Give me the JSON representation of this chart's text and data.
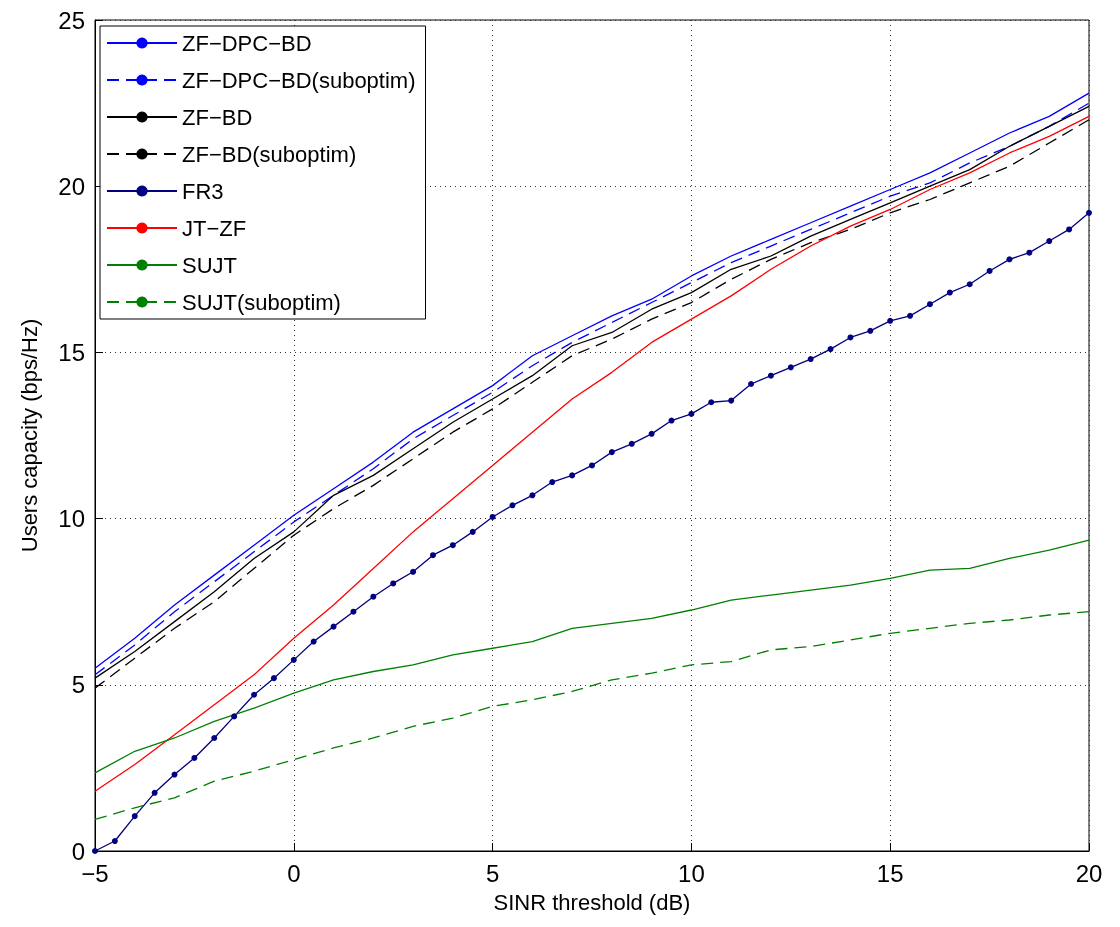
{
  "chart_data": {
    "type": "line",
    "xlabel": "SINR threshold (dB)",
    "ylabel": "Users capacity (bps/Hz)",
    "x": [
      -5,
      -4,
      -3,
      -2,
      -1,
      0,
      1,
      2,
      3,
      4,
      5,
      6,
      7,
      8,
      9,
      10,
      11,
      12,
      13,
      14,
      15,
      16,
      17,
      18,
      19,
      20
    ],
    "xlim": [
      -5,
      20
    ],
    "xticks": [
      -5,
      0,
      5,
      10,
      15,
      20
    ],
    "ylim": [
      0,
      25
    ],
    "yticks": [
      0,
      5,
      10,
      15,
      20,
      25
    ],
    "grid": true,
    "legend": "top left",
    "series": [
      {
        "name": "ZF−DPC−BD",
        "color": "#0000ff",
        "line_style": "solid",
        "values": [
          5.5,
          6.4,
          7.4,
          8.3,
          9.2,
          10.1,
          10.9,
          11.7,
          12.6,
          13.3,
          14.0,
          14.9,
          15.5,
          16.1,
          16.6,
          17.3,
          17.9,
          18.4,
          18.9,
          19.4,
          19.9,
          20.4,
          21.0,
          21.6,
          22.1,
          22.8
        ]
      },
      {
        "name": "ZF−DPC−BD(suboptim)",
        "color": "#0000ff",
        "line_style": "dashed",
        "values": [
          5.3,
          6.2,
          7.2,
          8.1,
          9.0,
          9.9,
          10.7,
          11.5,
          12.4,
          13.1,
          13.8,
          14.6,
          15.3,
          15.9,
          16.5,
          17.1,
          17.7,
          18.2,
          18.7,
          19.2,
          19.7,
          20.1,
          20.7,
          21.2,
          21.8,
          22.5
        ]
      },
      {
        "name": "ZF−BD",
        "color": "#000000",
        "line_style": "solid",
        "values": [
          5.2,
          6.0,
          6.9,
          7.8,
          8.8,
          9.6,
          10.7,
          11.3,
          12.1,
          12.9,
          13.6,
          14.3,
          15.2,
          15.6,
          16.3,
          16.8,
          17.5,
          17.9,
          18.5,
          19.0,
          19.5,
          20.0,
          20.5,
          21.2,
          21.8,
          22.4
        ]
      },
      {
        "name": "ZF−BD(suboptim)",
        "color": "#000000",
        "line_style": "dashed",
        "values": [
          4.9,
          5.8,
          6.7,
          7.5,
          8.5,
          9.5,
          10.3,
          11.0,
          11.8,
          12.6,
          13.3,
          14.1,
          14.9,
          15.4,
          16.0,
          16.5,
          17.2,
          17.8,
          18.3,
          18.7,
          19.2,
          19.6,
          20.1,
          20.6,
          21.3,
          22.0
        ]
      },
      {
        "name": "FR3",
        "color": "#000080",
        "line_style": "solid",
        "marker": "circle",
        "x": [
          -5,
          -4.5,
          -4,
          -3.5,
          -3,
          -2.5,
          -2,
          -1.5,
          -1,
          -0.5,
          0,
          0.5,
          1,
          1.5,
          2,
          2.5,
          3,
          3.5,
          4,
          4.5,
          5,
          5.5,
          6,
          6.5,
          7,
          7.5,
          8,
          8.5,
          9,
          9.5,
          10,
          10.5,
          11,
          11.5,
          12,
          12.5,
          13,
          13.5,
          14,
          14.5,
          15,
          15.5,
          16,
          16.5,
          17,
          17.5,
          18,
          18.5,
          19,
          19.5,
          20
        ],
        "values": [
          0,
          0.3,
          1.05,
          1.75,
          2.3,
          2.8,
          3.4,
          4.05,
          4.7,
          5.2,
          5.75,
          6.3,
          6.75,
          7.2,
          7.65,
          8.05,
          8.4,
          8.9,
          9.2,
          9.6,
          10.05,
          10.4,
          10.7,
          11.1,
          11.3,
          11.6,
          12.0,
          12.25,
          12.55,
          12.95,
          13.15,
          13.5,
          13.55,
          14.05,
          14.3,
          14.55,
          14.8,
          15.1,
          15.45,
          15.65,
          15.95,
          16.1,
          16.45,
          16.8,
          17.05,
          17.45,
          17.8,
          18.0,
          18.35,
          18.7,
          19.2
        ]
      },
      {
        "name": "JT−ZF",
        "color": "#ff0000",
        "line_style": "solid",
        "values": [
          1.8,
          2.6,
          3.5,
          4.4,
          5.3,
          6.4,
          7.4,
          8.5,
          9.6,
          10.6,
          11.6,
          12.6,
          13.6,
          14.4,
          15.3,
          16.0,
          16.7,
          17.5,
          18.2,
          18.8,
          19.3,
          19.9,
          20.4,
          21.0,
          21.5,
          22.1
        ]
      },
      {
        "name": "SUJT",
        "color": "#008000",
        "line_style": "solid",
        "values": [
          2.35,
          3.0,
          3.4,
          3.9,
          4.3,
          4.75,
          5.15,
          5.4,
          5.6,
          5.9,
          6.1,
          6.3,
          6.7,
          6.85,
          7.0,
          7.25,
          7.55,
          7.7,
          7.85,
          8.0,
          8.2,
          8.45,
          8.5,
          8.8,
          9.05,
          9.35
        ]
      },
      {
        "name": "SUJT(suboptim)",
        "color": "#008000",
        "line_style": "dashed",
        "values": [
          0.95,
          1.3,
          1.6,
          2.1,
          2.4,
          2.75,
          3.1,
          3.4,
          3.75,
          4.0,
          4.35,
          4.55,
          4.8,
          5.15,
          5.35,
          5.6,
          5.7,
          6.05,
          6.15,
          6.35,
          6.55,
          6.7,
          6.85,
          6.95,
          7.1,
          7.2
        ]
      }
    ]
  }
}
